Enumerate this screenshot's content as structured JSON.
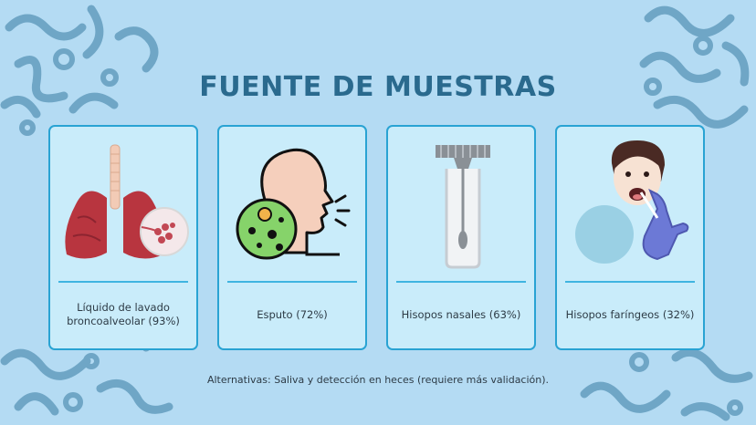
{
  "slide": {
    "title": "FUENTE DE MUESTRAS",
    "cards": [
      {
        "label": "Líquido de lavado broncoalveolar (93%)",
        "icon": "lungs-icon"
      },
      {
        "label": "Esputo (72%)",
        "icon": "sputum-cough-icon"
      },
      {
        "label": "Hisopos nasales (63%)",
        "icon": "nasal-swab-tube-icon"
      },
      {
        "label": "Hisopos faríngeos (32%)",
        "icon": "throat-swab-icon"
      }
    ],
    "footer": "Alternativas: Saliva y detección en heces (requiere más validación).",
    "colors": {
      "background": "#b4dbf3",
      "card_fill": "#c9ecfa",
      "card_border": "#29a3d3",
      "title": "#2a6a8e",
      "pattern": "#6fa6c6"
    }
  }
}
